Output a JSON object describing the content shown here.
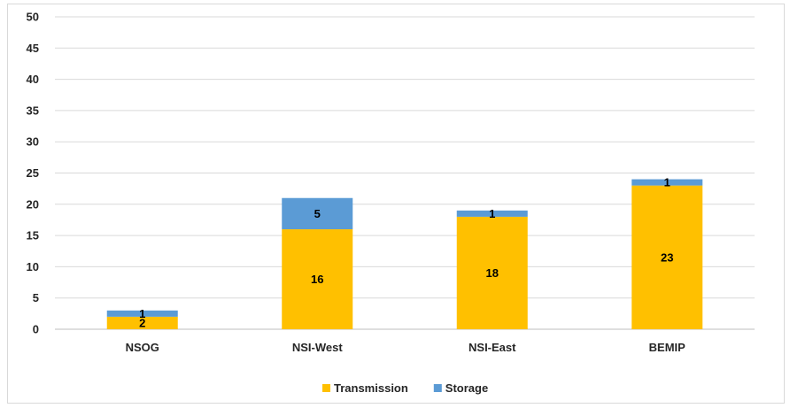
{
  "chart_data": {
    "type": "bar",
    "stacked": true,
    "categories": [
      "NSOG",
      "NSI-West",
      "NSI-East",
      "BEMIP"
    ],
    "series": [
      {
        "name": "Transmission",
        "values": [
          2,
          16,
          18,
          23
        ],
        "color": "#FFC000"
      },
      {
        "name": "Storage",
        "values": [
          1,
          5,
          1,
          1
        ],
        "color": "#5B9BD5"
      }
    ],
    "ylim": [
      0,
      50
    ],
    "yticks": [
      0,
      5,
      10,
      15,
      20,
      25,
      30,
      35,
      40,
      45,
      50
    ],
    "grid": true,
    "legend": "bottom-center"
  }
}
